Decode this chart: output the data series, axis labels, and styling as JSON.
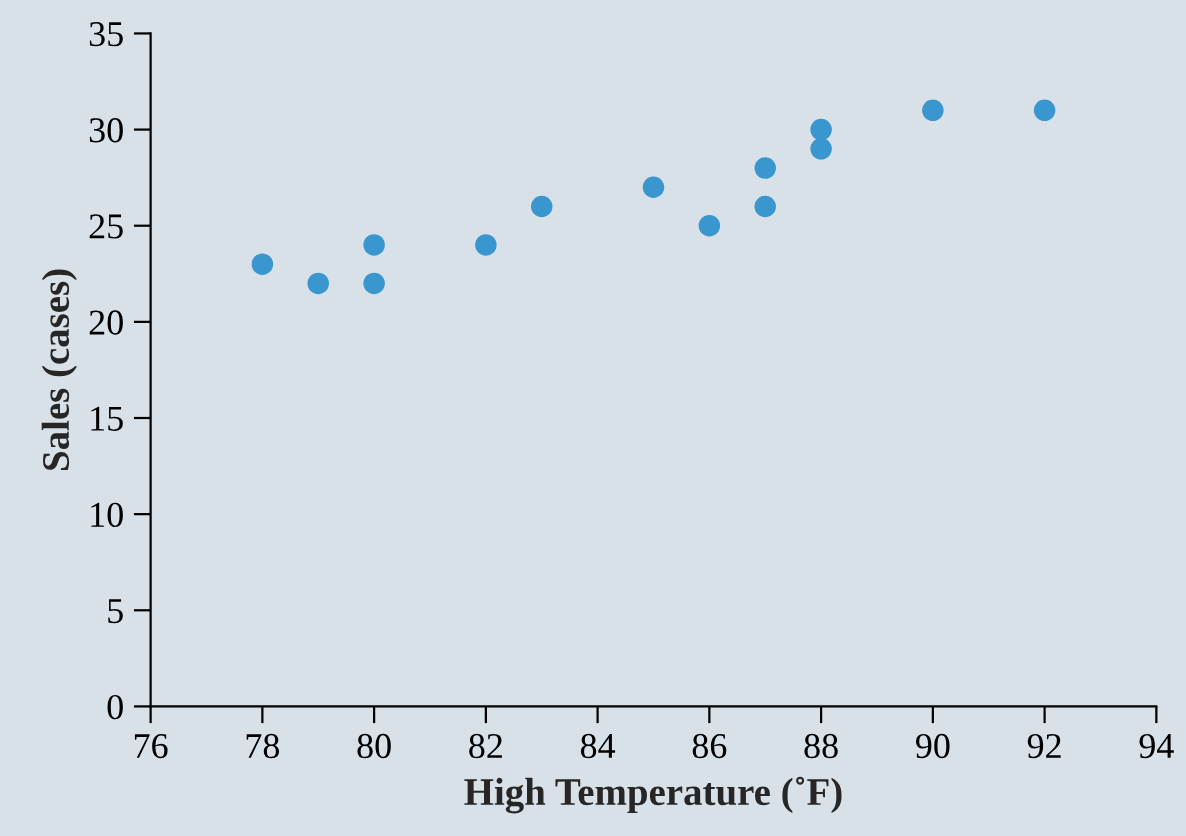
{
  "chart_data": {
    "type": "scatter",
    "xlabel": "High Temperature (˚F)",
    "ylabel": "Sales (cases)",
    "series": [
      {
        "color": "#3a96cf",
        "x": [
          78,
          79,
          80,
          80,
          82,
          83,
          85,
          86,
          87,
          87,
          88,
          88,
          90,
          92
        ],
        "values": [
          23,
          22,
          24,
          22,
          24,
          26,
          27,
          25,
          28,
          26,
          30,
          29,
          31,
          31
        ]
      }
    ],
    "xlim": [
      76,
      94
    ],
    "xticks": [
      76,
      78,
      80,
      82,
      84,
      86,
      88,
      90,
      92,
      94
    ],
    "ylim": [
      0,
      35
    ],
    "yticks": [
      0,
      5,
      10,
      15,
      20,
      25,
      30,
      35
    ],
    "marker": "circle",
    "grid": false
  }
}
